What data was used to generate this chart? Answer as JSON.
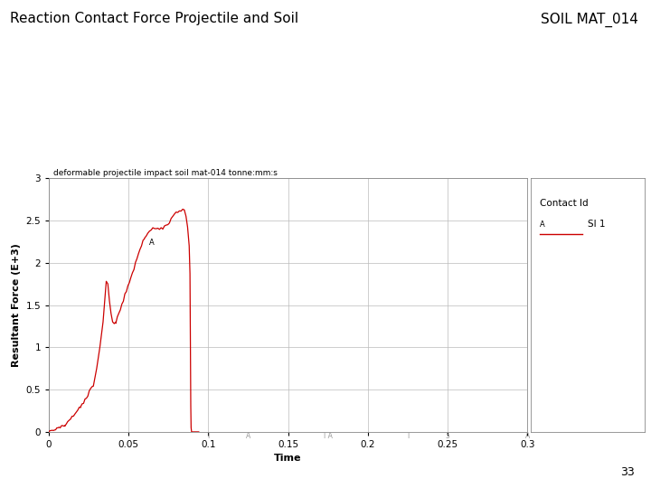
{
  "title_left": "Reaction Contact Force Projectile and Soil",
  "title_right": "SOIL MAT_014",
  "page_number": "33",
  "plot_title": "deformable projectile impact soil mat-014 tonne:mm:s",
  "xlabel": "Time",
  "ylabel": "Resultant Force (E+3)",
  "xlim": [
    0,
    0.3
  ],
  "ylim": [
    0,
    3
  ],
  "xticks": [
    0,
    0.05,
    0.1,
    0.15,
    0.2,
    0.25,
    0.3
  ],
  "yticks": [
    0,
    0.5,
    1,
    1.5,
    2,
    2.5,
    3
  ],
  "legend_title": "Contact Id",
  "legend_label": "A  SI 1",
  "line_color": "#cc0000",
  "background_color": "#ffffff",
  "title_fontsize": 11,
  "label_fontsize": 8,
  "tick_fontsize": 7.5,
  "plot_title_fontsize": 6.5
}
